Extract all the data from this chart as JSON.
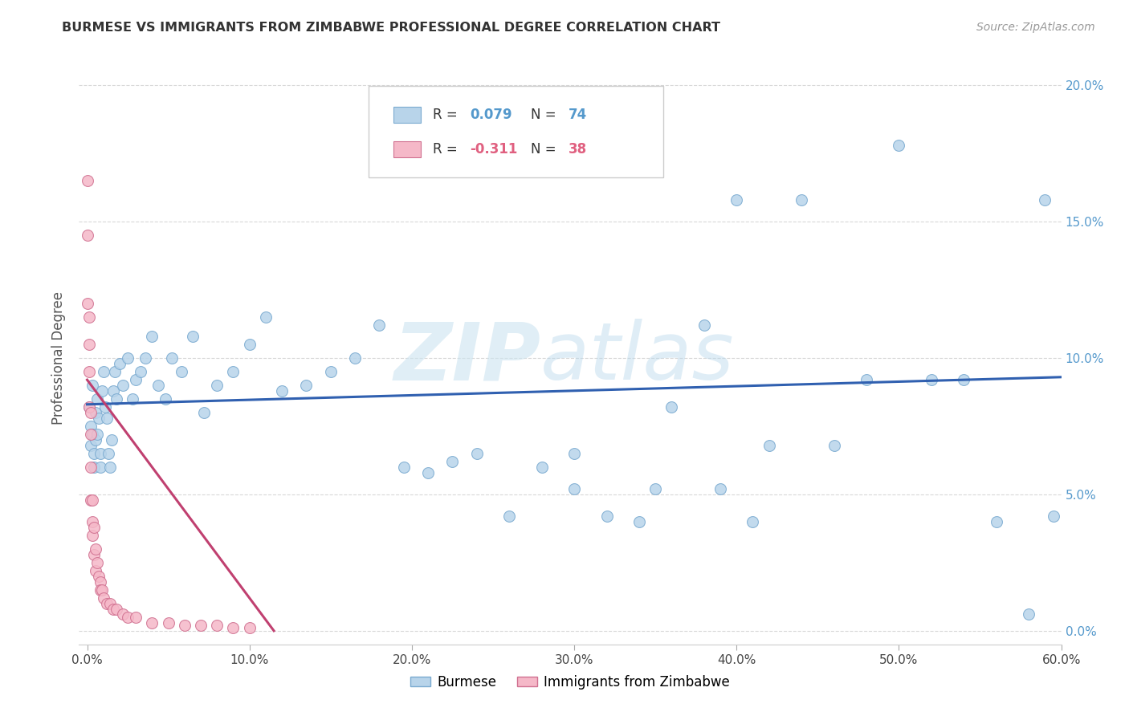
{
  "title": "BURMESE VS IMMIGRANTS FROM ZIMBABWE PROFESSIONAL DEGREE CORRELATION CHART",
  "source": "Source: ZipAtlas.com",
  "ylabel": "Professional Degree",
  "xlabel_ticks": [
    "0.0%",
    "10.0%",
    "20.0%",
    "30.0%",
    "40.0%",
    "50.0%",
    "60.0%"
  ],
  "xlabel_vals": [
    0.0,
    0.1,
    0.2,
    0.3,
    0.4,
    0.5,
    0.6
  ],
  "ylabel_ticks": [
    "0.0%",
    "5.0%",
    "10.0%",
    "15.0%",
    "20.0%"
  ],
  "ylabel_vals": [
    0.0,
    0.05,
    0.1,
    0.15,
    0.2
  ],
  "xlim": [
    -0.005,
    0.6
  ],
  "ylim": [
    -0.005,
    0.205
  ],
  "burmese_color": "#b8d4ea",
  "burmese_edge_color": "#7aaad0",
  "zimbabwe_color": "#f5b8c8",
  "zimbabwe_edge_color": "#d07090",
  "burmese_line_color": "#3060b0",
  "zimbabwe_line_color": "#c04070",
  "marker_size": 100,
  "burmese_x": [
    0.001,
    0.002,
    0.002,
    0.003,
    0.003,
    0.004,
    0.004,
    0.005,
    0.005,
    0.006,
    0.006,
    0.007,
    0.008,
    0.008,
    0.009,
    0.01,
    0.011,
    0.012,
    0.013,
    0.014,
    0.015,
    0.016,
    0.017,
    0.018,
    0.02,
    0.022,
    0.025,
    0.028,
    0.03,
    0.033,
    0.036,
    0.04,
    0.044,
    0.048,
    0.052,
    0.058,
    0.065,
    0.072,
    0.08,
    0.09,
    0.1,
    0.11,
    0.12,
    0.135,
    0.15,
    0.165,
    0.18,
    0.195,
    0.21,
    0.225,
    0.24,
    0.26,
    0.28,
    0.3,
    0.32,
    0.34,
    0.36,
    0.38,
    0.4,
    0.42,
    0.44,
    0.46,
    0.48,
    0.5,
    0.52,
    0.54,
    0.56,
    0.58,
    0.59,
    0.595,
    0.3,
    0.35,
    0.39,
    0.41
  ],
  "burmese_y": [
    0.082,
    0.075,
    0.068,
    0.09,
    0.072,
    0.065,
    0.06,
    0.07,
    0.08,
    0.085,
    0.072,
    0.078,
    0.065,
    0.06,
    0.088,
    0.095,
    0.082,
    0.078,
    0.065,
    0.06,
    0.07,
    0.088,
    0.095,
    0.085,
    0.098,
    0.09,
    0.1,
    0.085,
    0.092,
    0.095,
    0.1,
    0.108,
    0.09,
    0.085,
    0.1,
    0.095,
    0.108,
    0.08,
    0.09,
    0.095,
    0.105,
    0.115,
    0.088,
    0.09,
    0.095,
    0.1,
    0.112,
    0.06,
    0.058,
    0.062,
    0.065,
    0.042,
    0.06,
    0.065,
    0.042,
    0.04,
    0.082,
    0.112,
    0.158,
    0.068,
    0.158,
    0.068,
    0.092,
    0.178,
    0.092,
    0.092,
    0.04,
    0.006,
    0.158,
    0.042,
    0.052,
    0.052,
    0.052,
    0.04
  ],
  "zimbabwe_x": [
    0.0,
    0.0,
    0.0,
    0.001,
    0.001,
    0.001,
    0.001,
    0.002,
    0.002,
    0.002,
    0.002,
    0.003,
    0.003,
    0.003,
    0.004,
    0.004,
    0.005,
    0.005,
    0.006,
    0.007,
    0.008,
    0.008,
    0.009,
    0.01,
    0.012,
    0.014,
    0.016,
    0.018,
    0.022,
    0.025,
    0.03,
    0.04,
    0.05,
    0.06,
    0.07,
    0.08,
    0.09,
    0.1
  ],
  "zimbabwe_y": [
    0.165,
    0.145,
    0.12,
    0.115,
    0.105,
    0.095,
    0.082,
    0.08,
    0.072,
    0.06,
    0.048,
    0.048,
    0.04,
    0.035,
    0.038,
    0.028,
    0.03,
    0.022,
    0.025,
    0.02,
    0.018,
    0.015,
    0.015,
    0.012,
    0.01,
    0.01,
    0.008,
    0.008,
    0.006,
    0.005,
    0.005,
    0.003,
    0.003,
    0.002,
    0.002,
    0.002,
    0.001,
    0.001
  ],
  "burmese_line_x": [
    0.0,
    0.6
  ],
  "burmese_line_y": [
    0.083,
    0.093
  ],
  "zimbabwe_line_x": [
    0.0,
    0.115
  ],
  "zimbabwe_line_y": [
    0.092,
    0.0
  ],
  "watermark_zip": "ZIP",
  "watermark_atlas": "atlas",
  "background_color": "#ffffff",
  "grid_color": "#d8d8d8",
  "axis_label_color": "#5599cc",
  "title_color": "#333333",
  "source_color": "#999999"
}
